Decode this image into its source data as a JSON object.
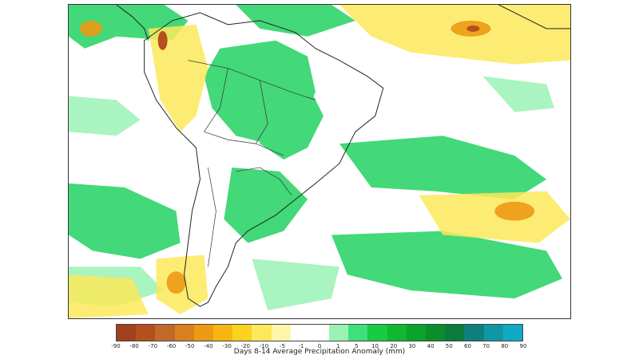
{
  "map": {
    "title": "Days 8-14 Average Precipitation Anomaly (mm)"
  },
  "legend": {
    "colors": [
      "#a0401c",
      "#b5501e",
      "#c06a2a",
      "#d8801e",
      "#ec9a14",
      "#f7b513",
      "#fbd21c",
      "#fce95a",
      "#fdf6a6",
      "#ffffff",
      "#ffffff",
      "#9af2b5",
      "#3fe07a",
      "#16cc45",
      "#0fb82f",
      "#0aa32c",
      "#0a8f2a",
      "#0b7a3a",
      "#0d7f7f",
      "#1096a6",
      "#12a9c4"
    ],
    "ticks": [
      "-90",
      "-80",
      "-70",
      "-60",
      "-50",
      "-40",
      "-30",
      "-20",
      "-10",
      "-5",
      "-1",
      "0",
      "1",
      "5",
      "10",
      "20",
      "30",
      "40",
      "50",
      "60",
      "70",
      "80",
      "90"
    ]
  }
}
